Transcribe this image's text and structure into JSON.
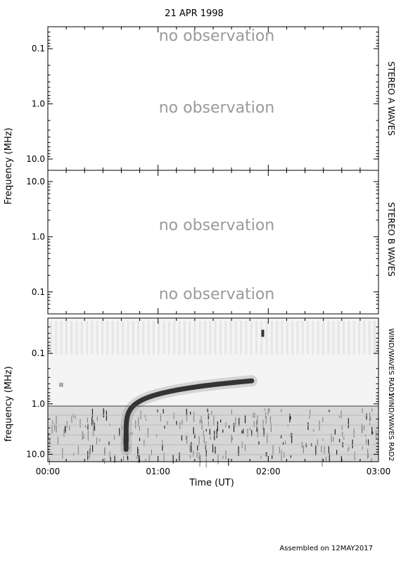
{
  "title": "21 APR 1998",
  "footer": "Assembled on 12MAY2017",
  "no_obs_text": "no observation",
  "chart_data": [
    {
      "type": "heatmap",
      "panel": "STEREO A WAVES",
      "ylabel": "Frequency (MHz)",
      "y_scale": "log",
      "ylim": [
        0.04,
        16
      ],
      "y_ticks": [
        "0.1",
        "1.0",
        "10.0"
      ],
      "inverted_top_is_low_freq": true,
      "status": "no observation"
    },
    {
      "type": "heatmap",
      "panel": "STEREO B WAVES",
      "y_scale": "log",
      "ylim": [
        16,
        0.04
      ],
      "y_ticks": [
        "10.0",
        "1.0",
        "0.1"
      ],
      "status": "no observation"
    },
    {
      "type": "heatmap",
      "panel_right_labels": [
        "WIND/WAVES RAD1",
        "WIND/WAVES RAD2"
      ],
      "ylabel": "frequency (MHz)",
      "xlabel": "Time (UT)",
      "y_scale": "log",
      "ylim": [
        0.02,
        14
      ],
      "y_ticks": [
        "0.1",
        "1.0",
        "10.0"
      ],
      "x_ticks": [
        "00:00",
        "01:00",
        "02:00",
        "03:00"
      ],
      "xlim_hours": [
        0,
        3
      ],
      "features": [
        {
          "name": "type III burst",
          "start_hour": 0.71,
          "freq_start_mhz": 8,
          "freq_end_mhz": 0.35,
          "end_hour": 1.85
        },
        {
          "name": "small burst",
          "hour": 1.95,
          "freq_mhz": 0.04
        }
      ]
    }
  ]
}
